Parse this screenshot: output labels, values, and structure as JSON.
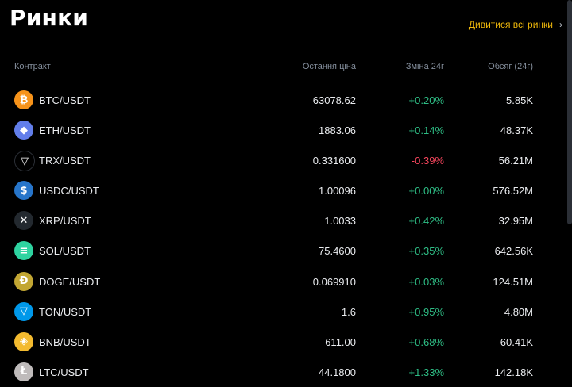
{
  "page": {
    "title": "Ринки",
    "view_all": "Дивитися всі ринки"
  },
  "table": {
    "headers": {
      "contract": "Контракт",
      "last_price": "Остання ціна",
      "change_24h": "Зміна 24г",
      "volume_24h": "Обсяг (24г)"
    },
    "rows": [
      {
        "pair": "BTC/USDT",
        "price": "63078.62",
        "change": "+0.20%",
        "volume": "5.85K",
        "icon": "btc-icon",
        "color": "#f7931a",
        "glyph": "₿",
        "dir": "up"
      },
      {
        "pair": "ETH/USDT",
        "price": "1883.06",
        "change": "+0.14%",
        "volume": "48.37K",
        "icon": "eth-icon",
        "color": "#627eea",
        "glyph": "◆",
        "dir": "up"
      },
      {
        "pair": "TRX/USDT",
        "price": "0.331600",
        "change": "-0.39%",
        "volume": "56.21M",
        "icon": "trx-icon",
        "color": "#000000",
        "glyph": "▽",
        "dir": "down"
      },
      {
        "pair": "USDC/USDT",
        "price": "1.00096",
        "change": "+0.00%",
        "volume": "576.52M",
        "icon": "usdc-icon",
        "color": "#2775ca",
        "glyph": "$",
        "dir": "up"
      },
      {
        "pair": "XRP/USDT",
        "price": "1.0033",
        "change": "+0.42%",
        "volume": "32.95M",
        "icon": "xrp-icon",
        "color": "#23292f",
        "glyph": "✕",
        "dir": "up"
      },
      {
        "pair": "SOL/USDT",
        "price": "75.4600",
        "change": "+0.35%",
        "volume": "642.56K",
        "icon": "sol-icon",
        "color": "#2ed3a0",
        "glyph": "≡",
        "dir": "up"
      },
      {
        "pair": "DOGE/USDT",
        "price": "0.069910",
        "change": "+0.03%",
        "volume": "124.51M",
        "icon": "doge-icon",
        "color": "#c2a633",
        "glyph": "Ð",
        "dir": "up"
      },
      {
        "pair": "TON/USDT",
        "price": "1.6",
        "change": "+0.95%",
        "volume": "4.80M",
        "icon": "ton-icon",
        "color": "#0098ea",
        "glyph": "▽",
        "dir": "up"
      },
      {
        "pair": "BNB/USDT",
        "price": "611.00",
        "change": "+0.68%",
        "volume": "60.41K",
        "icon": "bnb-icon",
        "color": "#f3ba2f",
        "glyph": "◈",
        "dir": "up"
      },
      {
        "pair": "LTC/USDT",
        "price": "44.1800",
        "change": "+1.33%",
        "volume": "142.18K",
        "icon": "ltc-icon",
        "color": "#bfbbbb",
        "glyph": "Ł",
        "dir": "up"
      }
    ]
  },
  "colors": {
    "accent": "#f0b90b",
    "positive": "#2ebd85",
    "negative": "#f6465d"
  }
}
